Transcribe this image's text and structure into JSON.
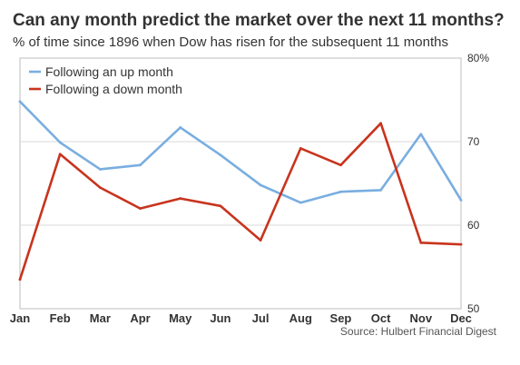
{
  "title": "Can any month predict the market over the next 11 months?",
  "subtitle": "% of time since 1896 when Dow has risen for the subsequent 11 months",
  "source": "Source: Hulbert Financial Digest",
  "chart_data": {
    "type": "line",
    "categories": [
      "Jan",
      "Feb",
      "Mar",
      "Apr",
      "May",
      "Jun",
      "Jul",
      "Aug",
      "Sep",
      "Oct",
      "Nov",
      "Dec"
    ],
    "series": [
      {
        "name": "Following an up month",
        "color": "#79aee0",
        "values": [
          74.8,
          69.9,
          66.7,
          67.2,
          71.7,
          68.4,
          64.8,
          62.7,
          64.0,
          64.2,
          70.9,
          63.0
        ]
      },
      {
        "name": "Following a down month",
        "color": "#c8341d",
        "values": [
          53.5,
          68.5,
          64.5,
          62.0,
          63.2,
          62.3,
          58.2,
          69.2,
          67.2,
          72.2,
          57.9,
          57.7
        ]
      }
    ],
    "ylim": [
      50,
      80
    ],
    "yticks": [
      {
        "value": 50,
        "label": "50"
      },
      {
        "value": 60,
        "label": "60"
      },
      {
        "value": 70,
        "label": "70"
      },
      {
        "value": 80,
        "label": "80%"
      }
    ],
    "grid": true,
    "legend_position": "top-left"
  }
}
